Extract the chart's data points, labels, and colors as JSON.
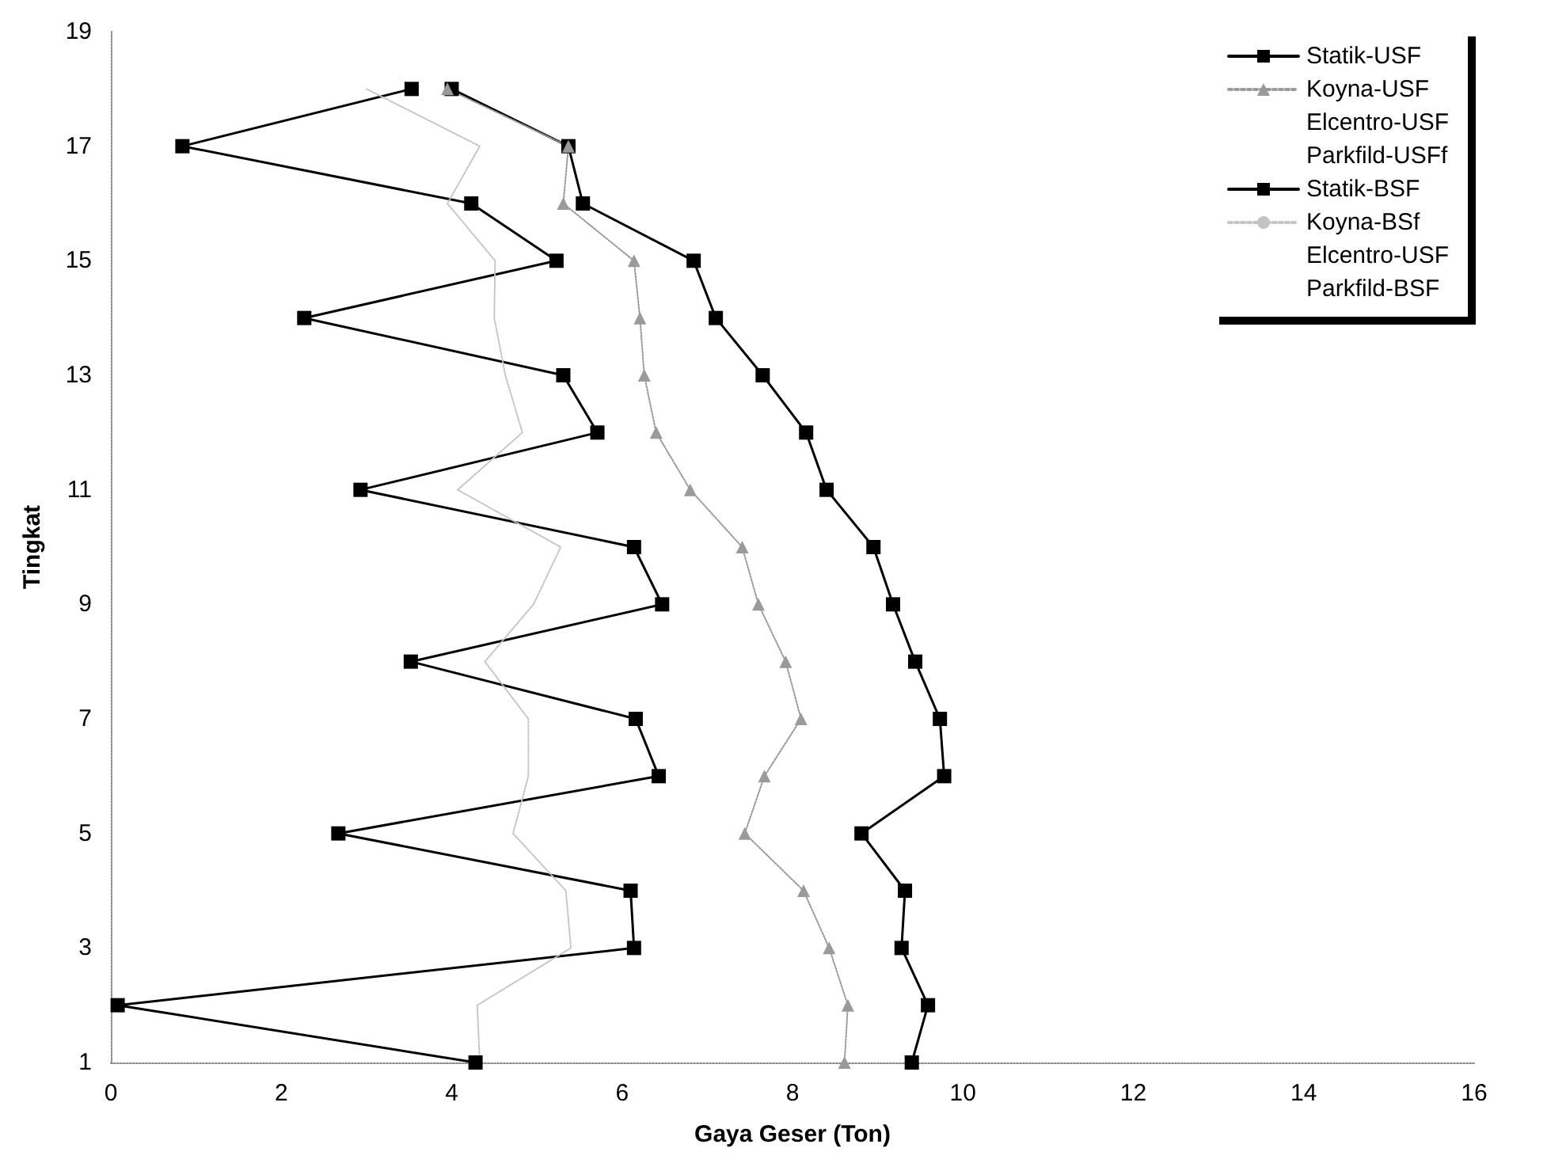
{
  "chart_data": {
    "type": "line",
    "xlabel": "Gaya Geser (Ton)",
    "ylabel": "Tingkat",
    "xlim": [
      0,
      16
    ],
    "xticks": [
      0,
      2,
      4,
      6,
      8,
      10,
      12,
      14,
      16
    ],
    "ylim": [
      1,
      19
    ],
    "yticks": [
      1,
      3,
      5,
      7,
      9,
      11,
      13,
      15,
      17,
      19
    ],
    "grid": false,
    "legend": "top right",
    "series": [
      {
        "name": "Statik-USF",
        "color": "#000000",
        "marker": "square",
        "line_style": "solid",
        "x": [
          9.4,
          9.59,
          9.28,
          9.32,
          8.81,
          9.78,
          9.73,
          9.44,
          9.18,
          8.95,
          8.4,
          8.16,
          7.65,
          7.1,
          6.84,
          5.54,
          5.37,
          4.0
        ],
        "values": [
          1,
          2,
          3,
          4,
          5,
          6,
          7,
          8,
          9,
          10,
          11,
          12,
          13,
          14,
          15,
          16,
          17,
          18
        ]
      },
      {
        "name": "Koyna-USF",
        "color": "#9a9a9a",
        "marker": "triangle",
        "line_style": "dotted",
        "x": [
          8.61,
          8.65,
          8.43,
          8.13,
          7.44,
          7.67,
          8.1,
          7.92,
          7.6,
          7.41,
          6.8,
          6.4,
          6.26,
          6.21,
          6.14,
          5.31,
          5.37,
          3.95
        ],
        "values": [
          1,
          2,
          3,
          4,
          5,
          6,
          7,
          8,
          9,
          10,
          11,
          12,
          13,
          14,
          15,
          16,
          17,
          18
        ]
      },
      {
        "name": "Elcentro-USF",
        "marker": "none",
        "x": [
          null
        ],
        "values": [
          null
        ]
      },
      {
        "name": "Parkfild-USFf",
        "marker": "none",
        "x": [
          null
        ],
        "values": [
          null
        ]
      },
      {
        "name": "Statik-BSF",
        "color": "#000000",
        "marker": "square",
        "line_style": "solid",
        "x": [
          4.28,
          0.08,
          6.14,
          6.1,
          2.67,
          6.43,
          6.16,
          3.52,
          6.47,
          6.14,
          2.93,
          5.71,
          5.31,
          2.27,
          5.23,
          4.23,
          0.84,
          3.53
        ],
        "values": [
          1,
          2,
          3,
          4,
          5,
          6,
          7,
          8,
          9,
          10,
          11,
          12,
          13,
          14,
          15,
          16,
          17,
          18
        ]
      },
      {
        "name": "Koyna-BSf",
        "color": "#c4c4c4",
        "marker": "none",
        "line_style": "dotted",
        "x": [
          4.33,
          4.3,
          5.4,
          5.34,
          4.72,
          4.9,
          4.9,
          4.39,
          4.96,
          5.28,
          4.07,
          4.83,
          4.63,
          4.5,
          4.51,
          3.95,
          4.33,
          3.0
        ],
        "values": [
          1,
          2,
          3,
          4,
          5,
          6,
          7,
          8,
          9,
          10,
          11,
          12,
          13,
          14,
          15,
          16,
          17,
          18
        ]
      },
      {
        "name": "Elcentro-USF",
        "marker": "none",
        "x": [
          null
        ],
        "values": [
          null
        ]
      },
      {
        "name": "Parkfild-BSF",
        "marker": "none",
        "x": [
          null
        ],
        "values": [
          null
        ]
      }
    ]
  }
}
